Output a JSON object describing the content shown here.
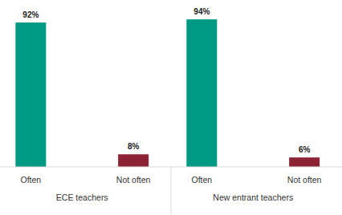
{
  "chart_data": {
    "type": "bar",
    "categories": [
      "ECE teachers",
      "New entrant teachers"
    ],
    "series": [
      {
        "name": "Often",
        "color": "#009983",
        "values": [
          92,
          94
        ],
        "value_labels": [
          "92%",
          "94%"
        ]
      },
      {
        "name": "Not often",
        "color": "#8c2234",
        "values": [
          8,
          6
        ],
        "value_labels": [
          "8%",
          "6%"
        ]
      }
    ],
    "ylim": [
      0,
      100
    ],
    "data_labels": true,
    "tick_labels": "x",
    "grid": false
  }
}
